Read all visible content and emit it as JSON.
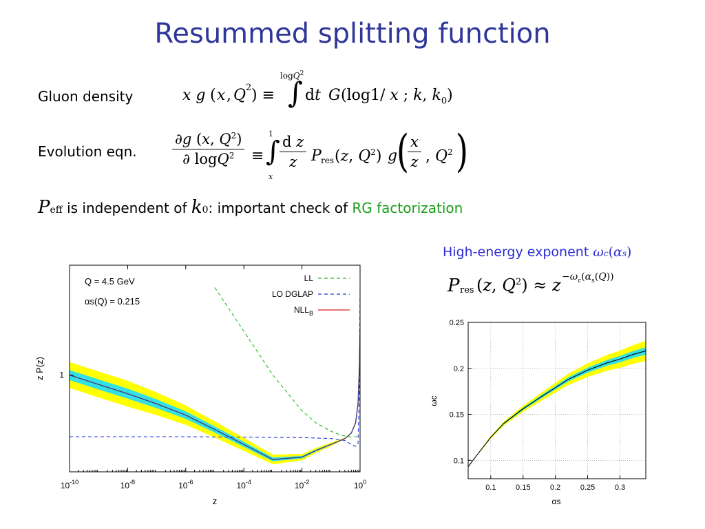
{
  "slide": {
    "title": "Resummed splitting function",
    "gluon_label": "Gluon density",
    "evolution_label": "Evolution eqn.",
    "statement_pre": "is independent of",
    "statement_mid": ": important check of",
    "statement_highlight": "RG factorization",
    "exponent_label": "High-energy exponent",
    "colors": {
      "title": "#2f3699",
      "highlight": "#1a9e1a",
      "exponent": "#2b2bd6"
    }
  },
  "chart_data": [
    {
      "type": "line",
      "xlabel": "z",
      "ylabel": "z P(z)",
      "x_scale": "log",
      "x_ticks": [
        "10-10",
        "10-8",
        "10-6",
        "10-4",
        "10-2",
        "100"
      ],
      "x_tick_values": [
        1e-10,
        1e-08,
        1e-06,
        0.0001,
        0.01,
        1
      ],
      "y_ticks": [
        "1"
      ],
      "annotations": [
        "Q = 4.5 GeV",
        "αs(Q) = 0.215"
      ],
      "legend_position": "top-right",
      "series": [
        {
          "name": "LL",
          "color": "#22bb22",
          "style": "dashed",
          "x": [
            1e-05,
            0.0001,
            0.001,
            0.01,
            0.03,
            0.1,
            0.2,
            0.4,
            1
          ],
          "y": [
            2.4,
            1.55,
            1.0,
            0.7,
            0.62,
            0.57,
            0.55,
            0.54,
            0.54
          ]
        },
        {
          "name": "LO DGLAP",
          "color": "#2233dd",
          "style": "dashed",
          "x": [
            1e-10,
            1e-06,
            0.01,
            0.1,
            0.3,
            0.5,
            0.7,
            0.85,
            0.95,
            1
          ],
          "y": [
            0.54,
            0.54,
            0.535,
            0.53,
            0.52,
            0.5,
            0.49,
            0.5,
            0.9,
            2.4
          ]
        },
        {
          "name": "NLLB",
          "color": "#dd2222",
          "style": "solid",
          "x": [
            1e-10,
            1e-09,
            1e-08,
            1e-07,
            1e-06,
            1e-05,
            0.0001,
            0.001,
            0.01,
            0.03,
            0.1,
            0.3,
            0.5,
            0.7,
            0.85,
            0.95,
            1
          ],
          "y": [
            1.0,
            0.91,
            0.83,
            0.75,
            0.67,
            0.58,
            0.5,
            0.43,
            0.44,
            0.47,
            0.5,
            0.53,
            0.56,
            0.62,
            0.75,
            1.1,
            1.6
          ]
        }
      ]
    },
    {
      "type": "line",
      "xlabel": "αs",
      "ylabel": "ωc",
      "xlim": [
        0.065,
        0.34
      ],
      "ylim": [
        0.08,
        0.25
      ],
      "x_ticks": [
        "0.1",
        "0.15",
        "0.2",
        "0.25",
        "0.3"
      ],
      "x_tick_values": [
        0.1,
        0.15,
        0.2,
        0.25,
        0.3
      ],
      "y_ticks": [
        "0.1",
        "0.15",
        "0.2",
        "0.25"
      ],
      "y_tick_values": [
        0.1,
        0.15,
        0.2,
        0.25
      ],
      "grid": true,
      "series": [
        {
          "x": [
            0.065,
            0.08,
            0.1,
            0.12,
            0.15,
            0.18,
            0.2,
            0.22,
            0.25,
            0.28,
            0.3,
            0.32,
            0.34
          ],
          "y": [
            0.093,
            0.107,
            0.125,
            0.14,
            0.156,
            0.17,
            0.179,
            0.188,
            0.198,
            0.206,
            0.21,
            0.215,
            0.219
          ]
        }
      ]
    }
  ]
}
